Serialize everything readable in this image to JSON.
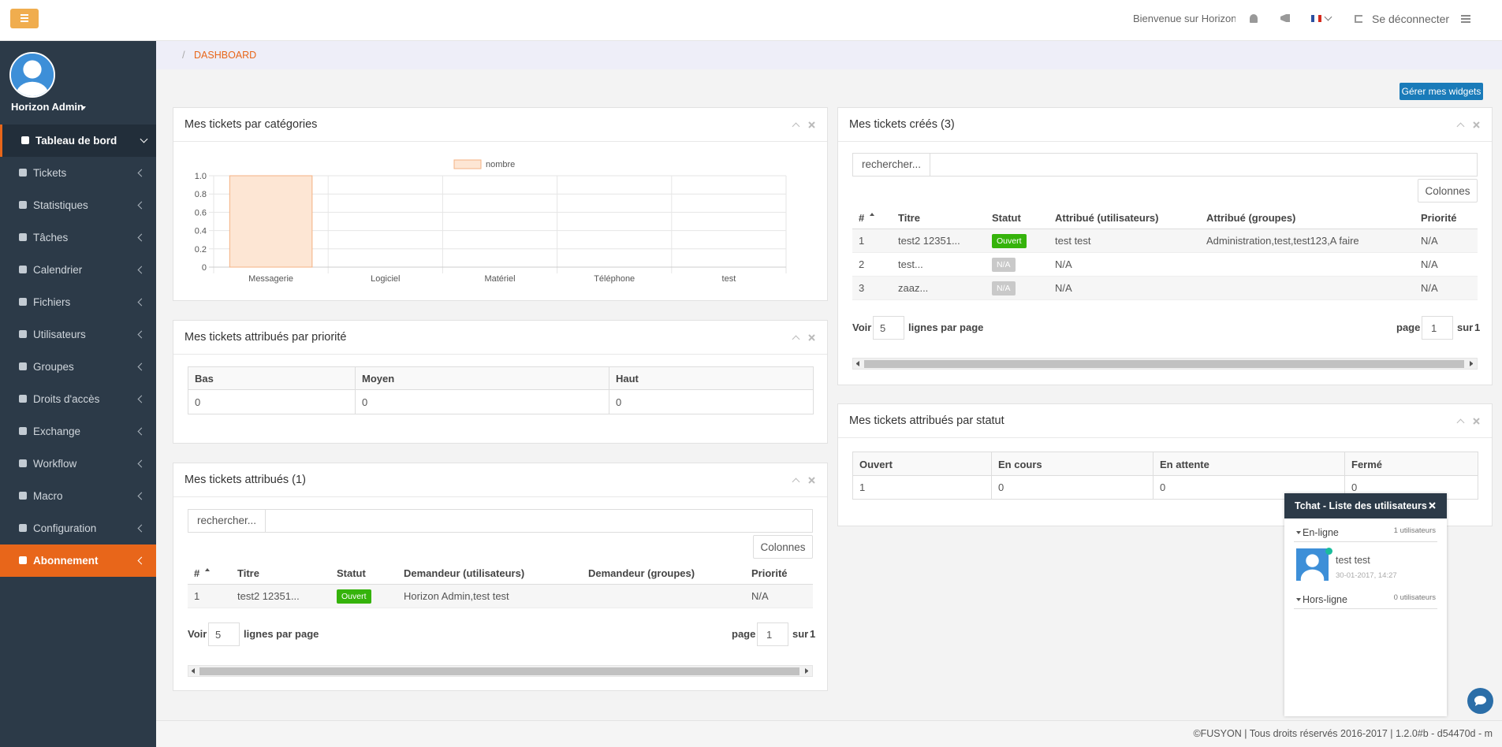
{
  "topbar": {
    "welcome": "Bienvenue sur Horizon",
    "logout": "Se déconnecter"
  },
  "sidebar": {
    "user": "Horizon Admin",
    "menu": [
      "Tableau de bord",
      "Tickets",
      "Statistiques",
      "Tâches",
      "Calendrier",
      "Fichiers",
      "Utilisateurs",
      "Groupes",
      "Droits d'accès",
      "Exchange",
      "Workflow",
      "Macro",
      "Configuration",
      "Abonnement"
    ]
  },
  "breadcrumb": {
    "separator": "/",
    "current": "DASHBOARD"
  },
  "manage_widgets": "Gérer mes widgets",
  "chart_data": {
    "type": "bar",
    "title": "Mes tickets par catégories",
    "categories": [
      "Messagerie",
      "Logiciel",
      "Matériel",
      "Téléphone",
      "test"
    ],
    "series": [
      {
        "name": "nombre",
        "color": "#fde6d4",
        "values": [
          1,
          0,
          0,
          0,
          0
        ]
      }
    ],
    "ylim": [
      0,
      1
    ],
    "yticks": [
      0,
      0.2,
      0.4,
      0.6,
      0.8,
      {
        "value": 1,
        "label": "1.0"
      }
    ],
    "grid": true
  },
  "widget_priority": {
    "title": "Mes tickets attribués par priorité",
    "table": {
      "header": [
        "Bas",
        "Moyen",
        "Haut"
      ],
      "rows": [
        [
          0,
          0,
          0
        ]
      ]
    }
  },
  "widget_assigned": {
    "title": "Mes tickets attribués (1)",
    "search": "rechercher...",
    "columns_button": "Colonnes",
    "table": {
      "header": [
        "#",
        "Titre",
        "Statut",
        "Demandeur (utilisateurs)",
        "Demandeur (groupes)",
        "Priorité"
      ],
      "rows": [
        [
          1,
          "test2 12351...",
          "Ouvert",
          "Horizon Admin,test test",
          null,
          "N/A"
        ]
      ]
    },
    "pager": {
      "show": "Voir",
      "per_page": 5,
      "per_page_label": "lignes par page",
      "page_label": "page",
      "page": 1,
      "of_label": "sur",
      "page_count": 1
    }
  },
  "widget_created": {
    "title": "Mes tickets créés (3)",
    "search": "rechercher...",
    "columns_button": "Colonnes",
    "table": {
      "header": [
        "#",
        "Titre",
        "Statut",
        "Attribué (utilisateurs)",
        "Attribué (groupes)",
        "Priorité"
      ],
      "rows": [
        [
          1,
          "test2 12351...",
          "Ouvert",
          "test test",
          "Administration,test,test123,A faire",
          "N/A"
        ],
        [
          2,
          "test...",
          "N/A",
          "N/A",
          null,
          "N/A"
        ],
        [
          3,
          "zaaz...",
          "N/A",
          "N/A",
          null,
          "N/A"
        ]
      ]
    },
    "pager": {
      "show": "Voir",
      "per_page": 5,
      "per_page_label": "lignes par page",
      "page_label": "page",
      "page": 1,
      "of_label": "sur",
      "page_count": 1
    }
  },
  "widget_status": {
    "title": "Mes tickets attribués par statut",
    "table": {
      "header": [
        "Ouvert",
        "En cours",
        "En attente",
        "Fermé"
      ],
      "rows": [
        [
          1,
          0,
          0,
          0
        ]
      ]
    }
  },
  "chat": {
    "title": "Tchat - Liste des utilisateurs",
    "online": "En-ligne",
    "online_count": "1 utilisateurs",
    "users": [
      {
        "name": "test test",
        "date": "30-01-2017, 14:27"
      }
    ],
    "offline": "Hors-ligne",
    "offline_count": "0 utilisateurs"
  },
  "footer": "©FUSYON | Tous droits réservés 2016-2017 | 1.2.0#b - d54470d - m"
}
